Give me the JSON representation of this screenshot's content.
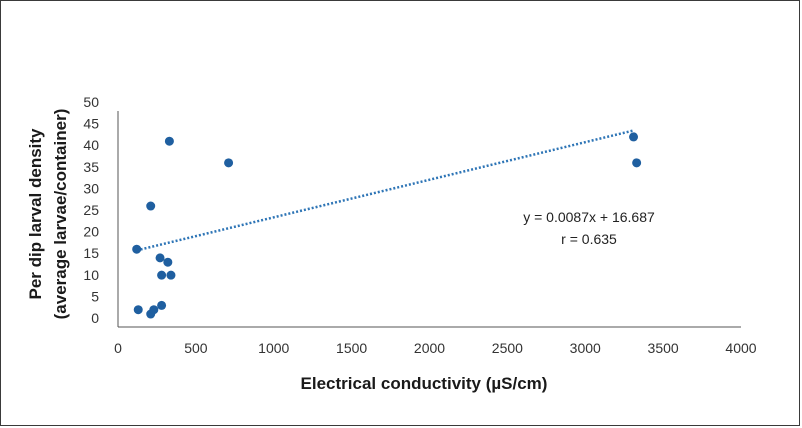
{
  "chart_data": {
    "type": "scatter",
    "title": "",
    "xlabel": "Electrical conductivity (µS/cm)",
    "ylabel_lines": [
      "Per dip larval density",
      "(average larvae/container)"
    ],
    "xlim": [
      0,
      4000
    ],
    "ylim": [
      0,
      50
    ],
    "x_ticks": [
      "0",
      "500",
      "1000",
      "1500",
      "2000",
      "2500",
      "3000",
      "3500",
      "4000"
    ],
    "y_ticks": [
      "0",
      "5",
      "10",
      "15",
      "20",
      "25",
      "30",
      "35",
      "40",
      "45",
      "50"
    ],
    "grid": false,
    "legend": "none",
    "marker_color": "#1f5fa0",
    "trendline_color": "#2e75b6",
    "points": [
      {
        "x": 120,
        "y": 18
      },
      {
        "x": 130,
        "y": 4
      },
      {
        "x": 210,
        "y": 28
      },
      {
        "x": 210,
        "y": 3
      },
      {
        "x": 230,
        "y": 4
      },
      {
        "x": 270,
        "y": 16
      },
      {
        "x": 280,
        "y": 12
      },
      {
        "x": 280,
        "y": 5
      },
      {
        "x": 320,
        "y": 15
      },
      {
        "x": 330,
        "y": 43
      },
      {
        "x": 340,
        "y": 12
      },
      {
        "x": 710,
        "y": 38
      },
      {
        "x": 3310,
        "y": 44
      },
      {
        "x": 3330,
        "y": 38
      }
    ],
    "trendline": {
      "slope": 0.0087,
      "intercept": 16.687,
      "x_range": [
        120,
        3310
      ],
      "style": "dotted"
    },
    "annotations": [
      "y = 0.0087x + 16.687",
      "r = 0.635"
    ]
  }
}
